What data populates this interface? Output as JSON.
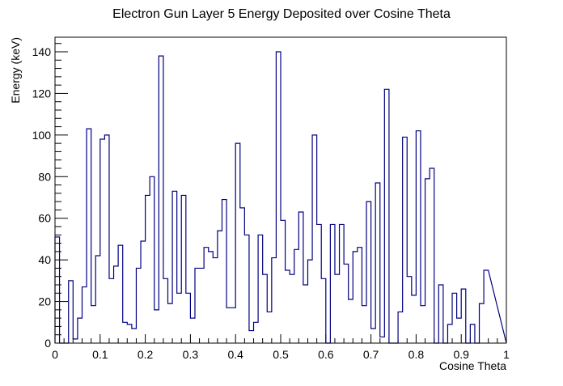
{
  "chart_data": {
    "type": "histogram",
    "title": "Electron Gun Layer 5 Energy Deposited over Cosine Theta",
    "xlabel": "Cosine Theta",
    "ylabel": "Energy (keV)",
    "xlim": [
      0,
      1
    ],
    "ylim": [
      0,
      147
    ],
    "x_ticks": [
      0,
      0.1,
      0.2,
      0.3,
      0.4,
      0.5,
      0.6,
      0.7,
      0.8,
      0.9,
      1
    ],
    "x_tick_labels": [
      "0",
      "0.1",
      "0.2",
      "0.3",
      "0.4",
      "0.5",
      "0.6",
      "0.7",
      "0.8",
      "0.9",
      "1"
    ],
    "y_ticks": [
      0,
      20,
      40,
      60,
      80,
      100,
      120,
      140
    ],
    "y_tick_labels": [
      "0",
      "20",
      "40",
      "60",
      "80",
      "100",
      "120",
      "140"
    ],
    "line_color": "#000080",
    "grid": false,
    "bin_width": 0.01,
    "values": [
      51,
      0,
      0,
      30,
      2,
      12,
      27,
      103,
      18,
      42,
      98,
      100,
      31,
      37,
      47,
      10,
      9,
      7,
      36,
      49,
      71,
      80,
      16,
      138,
      31,
      19,
      73,
      24,
      71,
      24,
      12,
      36,
      36,
      46,
      44,
      41,
      54,
      69,
      17,
      17,
      96,
      65,
      52,
      6,
      10,
      52,
      33,
      15,
      41,
      140,
      59,
      35,
      33,
      45,
      63,
      28,
      40,
      100,
      57,
      31,
      0,
      57,
      33,
      57,
      38,
      21,
      44,
      46,
      18,
      68,
      7,
      77,
      3,
      122,
      0,
      0,
      15,
      99,
      32,
      23,
      102,
      18,
      79,
      84,
      0,
      28,
      0,
      9,
      24,
      12,
      26,
      0,
      9,
      0,
      19,
      35
    ]
  }
}
